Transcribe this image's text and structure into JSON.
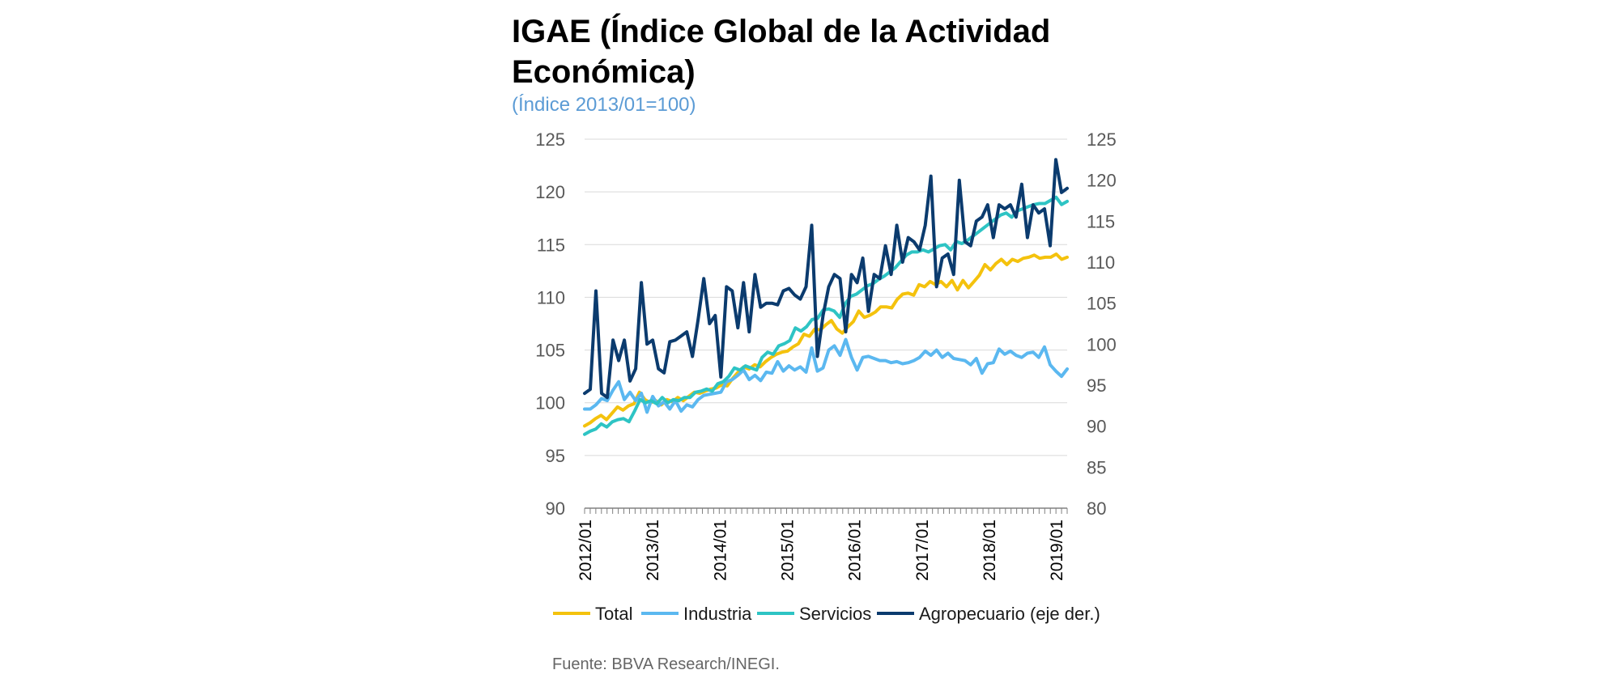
{
  "title": "IGAE (Índice Global de la Actividad Económica)",
  "subtitle": "(Índice 2013/01=100)",
  "source": "Fuente: BBVA Research/INEGI.",
  "chart_data": {
    "type": "line",
    "x_start": "2012/01",
    "x_end": "2019/03",
    "x_tick_labels": [
      "2012/01",
      "2013/01",
      "2014/01",
      "2015/01",
      "2016/01",
      "2017/01",
      "2018/01",
      "2019/01"
    ],
    "y_left": {
      "min": 90,
      "max": 125,
      "step": 5,
      "ticks": [
        "90",
        "95",
        "100",
        "105",
        "110",
        "115",
        "120",
        "125"
      ]
    },
    "y_right": {
      "min": 80,
      "max": 125,
      "step": 5,
      "ticks": [
        "80",
        "85",
        "90",
        "95",
        "100",
        "105",
        "110",
        "115",
        "120",
        "125"
      ]
    },
    "series": [
      {
        "name": "Total",
        "axis": "left",
        "color": "#f4c20d",
        "values": [
          97.8,
          98.1,
          98.5,
          98.8,
          98.4,
          99.0,
          99.6,
          99.3,
          99.7,
          99.9,
          101.0,
          100.3,
          100.0,
          100.2,
          99.8,
          100.3,
          100.1,
          100.5,
          100.2,
          100.6,
          101.0,
          100.9,
          101.1,
          101.3,
          101.4,
          101.7,
          101.6,
          102.3,
          102.9,
          103.4,
          103.2,
          103.6,
          103.4,
          103.9,
          104.3,
          104.6,
          104.8,
          104.9,
          105.3,
          105.6,
          106.5,
          106.3,
          107.0,
          106.9,
          107.4,
          107.8,
          107.0,
          106.6,
          107.2,
          107.7,
          108.7,
          108.1,
          108.3,
          108.6,
          109.1,
          109.1,
          109.0,
          109.8,
          110.3,
          110.4,
          110.2,
          111.2,
          111.0,
          111.5,
          111.2,
          111.5,
          111.0,
          111.6,
          110.7,
          111.6,
          110.9,
          111.5,
          112.1,
          113.1,
          112.6,
          113.2,
          113.6,
          113.1,
          113.6,
          113.4,
          113.7,
          113.8,
          114.0,
          113.7,
          113.8,
          113.8,
          114.1,
          113.6,
          113.8
        ]
      },
      {
        "name": "Industria",
        "axis": "left",
        "color": "#5bb8f0",
        "values": [
          99.4,
          99.4,
          99.8,
          100.4,
          100.2,
          101.2,
          102.0,
          100.3,
          101.0,
          100.2,
          100.9,
          99.1,
          100.6,
          99.7,
          100.1,
          99.4,
          100.2,
          99.2,
          99.8,
          99.6,
          100.3,
          100.7,
          100.8,
          100.9,
          101.0,
          102.0,
          102.2,
          102.6,
          103.1,
          102.2,
          102.6,
          102.1,
          102.9,
          102.8,
          103.9,
          103.0,
          103.5,
          103.1,
          103.4,
          102.9,
          105.2,
          103.0,
          103.3,
          105.0,
          105.4,
          104.5,
          106.0,
          104.3,
          103.1,
          104.3,
          104.4,
          104.2,
          104.0,
          104.0,
          103.8,
          103.9,
          103.7,
          103.8,
          104.0,
          104.3,
          104.9,
          104.5,
          105.0,
          104.3,
          104.7,
          104.2,
          104.1,
          104.0,
          103.6,
          104.2,
          102.8,
          103.7,
          103.8,
          105.1,
          104.6,
          104.9,
          104.5,
          104.3,
          104.7,
          104.8,
          104.3,
          105.3,
          103.6,
          103.0,
          102.5,
          103.2
        ]
      },
      {
        "name": "Servicios",
        "axis": "left",
        "color": "#2ec4c4",
        "values": [
          97.0,
          97.3,
          97.5,
          98.0,
          97.7,
          98.2,
          98.4,
          98.5,
          98.2,
          99.2,
          100.3,
          100.0,
          100.2,
          99.9,
          100.5,
          100.0,
          100.3,
          100.2,
          100.5,
          100.5,
          101.0,
          101.1,
          101.3,
          101.1,
          101.8,
          102.0,
          102.5,
          103.3,
          103.1,
          103.5,
          103.3,
          103.1,
          104.3,
          104.8,
          104.6,
          105.4,
          105.6,
          105.9,
          107.1,
          106.8,
          107.2,
          107.9,
          108.0,
          108.8,
          108.9,
          108.7,
          108.1,
          109.4,
          110.1,
          110.3,
          110.7,
          111.1,
          111.3,
          111.7,
          112.0,
          112.4,
          112.8,
          113.4,
          114.0,
          114.3,
          114.3,
          114.5,
          114.3,
          114.6,
          114.9,
          115.0,
          114.5,
          115.3,
          115.1,
          115.4,
          115.8,
          116.2,
          116.6,
          117.0,
          117.4,
          117.8,
          118.0,
          117.6,
          118.2,
          118.4,
          118.6,
          118.8,
          118.9,
          118.9,
          119.2,
          119.5,
          118.8,
          119.1
        ]
      },
      {
        "name": "Agropecuario (eje der.)",
        "axis": "right",
        "color": "#0b3b6e",
        "values": [
          94.0,
          94.5,
          106.5,
          94.0,
          93.5,
          100.5,
          98.0,
          100.5,
          95.5,
          97.0,
          107.5,
          100.0,
          100.5,
          97.0,
          96.5,
          100.3,
          100.5,
          101.0,
          101.5,
          98.5,
          103.0,
          108.0,
          102.5,
          103.5,
          96.0,
          107.0,
          106.5,
          102.0,
          107.5,
          101.5,
          108.5,
          104.5,
          105.0,
          105.0,
          104.8,
          106.5,
          106.8,
          106.0,
          105.5,
          107.0,
          114.5,
          98.5,
          103.5,
          107.0,
          108.5,
          108.0,
          101.5,
          108.5,
          107.5,
          110.5,
          104.0,
          108.5,
          108.0,
          112.0,
          108.5,
          114.5,
          110.0,
          113.0,
          112.5,
          111.5,
          114.5,
          120.5,
          107.0,
          110.5,
          111.0,
          108.5,
          120.0,
          112.5,
          112.0,
          115.0,
          115.5,
          117.0,
          113.0,
          117.0,
          116.5,
          117.0,
          115.5,
          119.5,
          113.0,
          117.0,
          116.0,
          116.5,
          112.0,
          122.5,
          118.5,
          119.0
        ]
      }
    ],
    "legend": {
      "position": "bottom",
      "items": [
        "Total",
        "Industria",
        "Servicios",
        "Agropecuario (eje der.)"
      ]
    },
    "grid": "horizontal"
  }
}
